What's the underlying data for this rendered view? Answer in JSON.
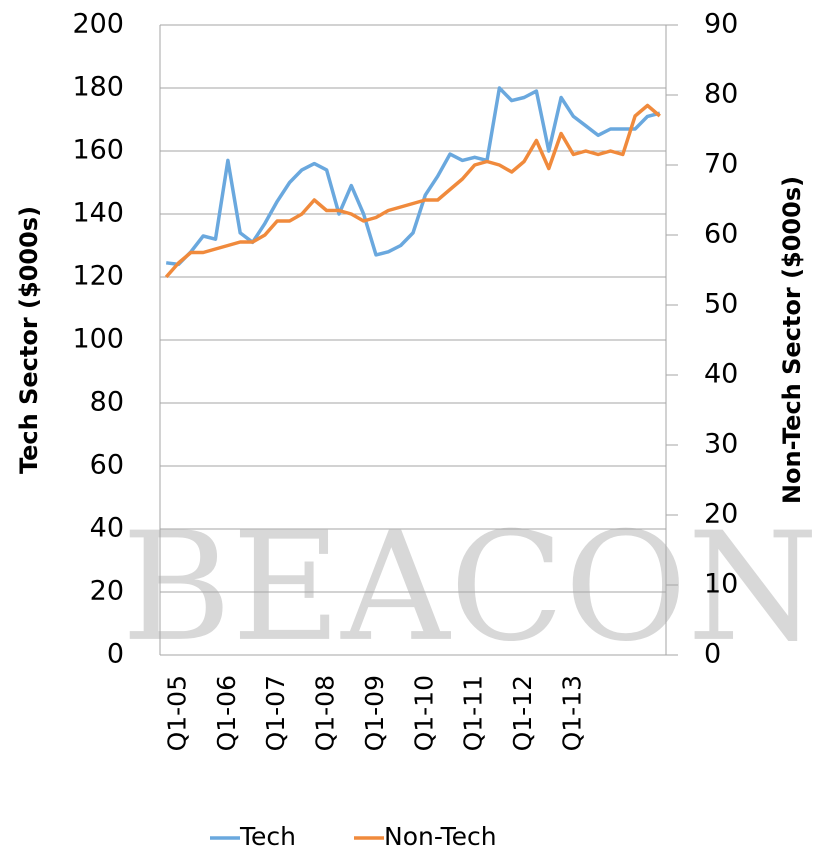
{
  "chart_data": {
    "type": "line",
    "watermark": "BEACON",
    "ylabel": "Tech Sector ($000s)",
    "y2label": "Non-Tech Sector ($000s)",
    "categories": [
      null,
      "Q1-05",
      null,
      null,
      null,
      "Q1-06",
      null,
      null,
      null,
      "Q1-07",
      null,
      null,
      null,
      "Q1-08",
      null,
      null,
      null,
      "Q1-09",
      null,
      null,
      null,
      "Q1-10",
      null,
      null,
      null,
      "Q1-11",
      null,
      null,
      null,
      "Q1-12",
      null,
      null,
      null,
      "Q1-13",
      null,
      null,
      null,
      null,
      null,
      null,
      null
    ],
    "series": [
      {
        "name": "Tech",
        "color": "#6aa8de",
        "axis": "y",
        "values": [
          124.5,
          124,
          128,
          133,
          132,
          157,
          134,
          131,
          137,
          144,
          150,
          154,
          156,
          154,
          140,
          149,
          140,
          127,
          128,
          130,
          134,
          146,
          152,
          159,
          157,
          158,
          157,
          180,
          176,
          177,
          179,
          160,
          177,
          171,
          168,
          165,
          167,
          167,
          167,
          171,
          172
        ]
      },
      {
        "name": "Non-Tech",
        "color": "#f08a3c",
        "axis": "y2",
        "values": [
          54,
          56,
          57.5,
          57.5,
          58,
          58.5,
          59,
          59,
          60,
          62,
          62,
          63,
          65,
          63.5,
          63.5,
          63,
          62,
          62.5,
          63.5,
          64,
          64.5,
          65,
          65,
          66.5,
          68,
          70,
          70.5,
          70,
          69,
          70.5,
          73.5,
          69.5,
          74.5,
          71.5,
          72,
          71.5,
          72,
          71.5,
          77,
          78.5,
          77
        ]
      }
    ],
    "ylim": [
      0,
      200
    ],
    "yticks": [
      0,
      20,
      40,
      60,
      80,
      100,
      120,
      140,
      160,
      180,
      200
    ],
    "y2lim": [
      0,
      90
    ],
    "y2ticks": [
      0,
      10,
      20,
      30,
      40,
      50,
      60,
      70,
      80,
      90
    ],
    "grid": true,
    "legend": "bottom"
  }
}
